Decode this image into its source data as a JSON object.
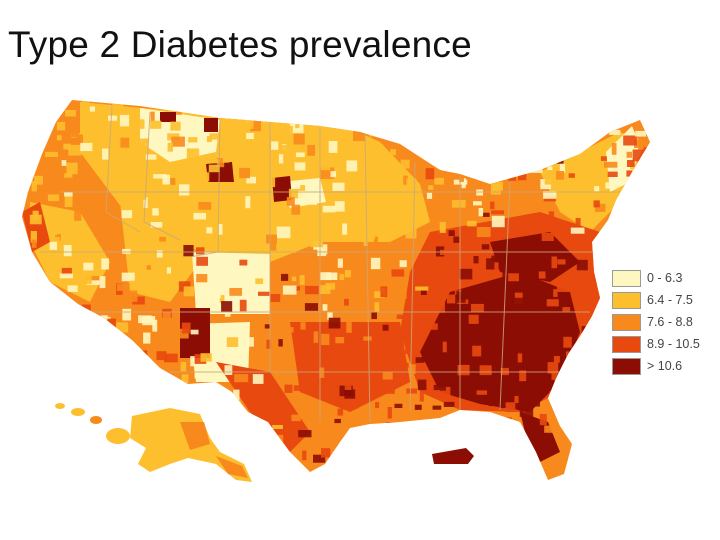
{
  "title": "Type 2 Diabetes prevalence",
  "legend": {
    "items": [
      {
        "label": "0 - 6.3",
        "color": "#fff7c0"
      },
      {
        "label": "6.4 - 7.5",
        "color": "#fdbf2e"
      },
      {
        "label": "7.6 - 8.8",
        "color": "#f8891c"
      },
      {
        "label": "8.9 - 10.5",
        "color": "#e8490f"
      },
      {
        "label": "> 10.6",
        "color": "#8c0d04"
      }
    ]
  },
  "colors": {
    "class1": "#fff7c0",
    "class2": "#fdbf2e",
    "class3": "#f8891c",
    "class4": "#e8490f",
    "class5": "#8c0d04",
    "state_border": "#c9a87a"
  },
  "regions": {
    "contiguous_us": "Contiguous United States",
    "alaska": "Alaska",
    "hawaii": "Hawaii",
    "puerto_rico": "Puerto Rico"
  }
}
